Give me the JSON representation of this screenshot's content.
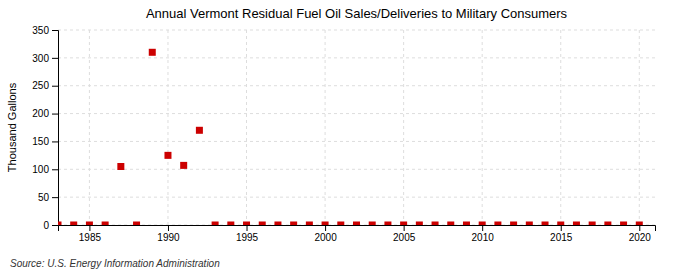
{
  "chart_data": {
    "type": "scatter",
    "title": "Annual Vermont Residual Fuel Oil Sales/Deliveries to Military Consumers",
    "ylabel": "Thousand Gallons",
    "annotations": [
      "Source: U.S. Energy Information Administration"
    ],
    "x": [
      1983,
      1984,
      1985,
      1986,
      1987,
      1988,
      1989,
      1990,
      1991,
      1992,
      1993,
      1994,
      1995,
      1996,
      1997,
      1998,
      1999,
      2000,
      2001,
      2002,
      2003,
      2004,
      2005,
      2006,
      2007,
      2008,
      2009,
      2010,
      2011,
      2012,
      2013,
      2014,
      2015,
      2016,
      2017,
      2018,
      2019,
      2020
    ],
    "values": [
      0,
      0,
      0,
      0,
      105,
      0,
      310,
      125,
      107,
      170,
      0,
      0,
      0,
      0,
      0,
      0,
      0,
      0,
      0,
      0,
      0,
      0,
      0,
      0,
      0,
      0,
      0,
      0,
      0,
      0,
      0,
      0,
      0,
      0,
      0,
      0,
      0,
      0
    ],
    "color": "#cc0000",
    "marker": "square",
    "xlim": [
      1983,
      2021
    ],
    "ylim": [
      0,
      350
    ],
    "xticks": [
      1985,
      1990,
      1995,
      2000,
      2005,
      2010,
      2015,
      2020
    ],
    "yticks": [
      0,
      50,
      100,
      150,
      200,
      250,
      300,
      350
    ],
    "grid": true
  }
}
